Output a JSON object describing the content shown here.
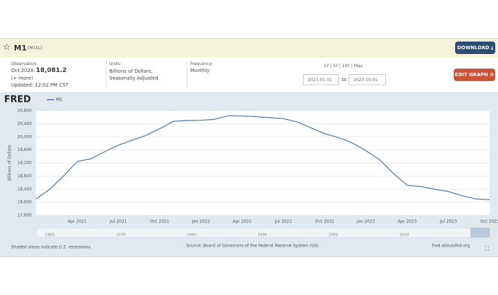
{
  "header": {
    "title": "M1",
    "code": "(M1SL)",
    "download": "DOWNLOAD"
  },
  "info": {
    "observation_label": "Observation:",
    "observation_date": "Oct 2023:",
    "observation_value": "18,081.2",
    "more": "(+ more)",
    "updated": "Updated: 12:02 PM CST",
    "units_label": "Units:",
    "units": "Billions of Dollars, Seasonally Adjusted",
    "frequency_label": "Frequency:",
    "frequency": "Monthly",
    "ranges": [
      "1Y",
      "5Y",
      "10Y",
      "Max"
    ],
    "start": "2021-01-01",
    "to": "to",
    "end": "2023-10-01",
    "edit": "EDIT GRAPH"
  },
  "logo": "FRED",
  "chart_data": {
    "type": "line",
    "y_label": "Billions of Dollars",
    "categories": [
      null,
      null,
      null,
      "Apr 2021",
      null,
      null,
      "Jul 2021",
      null,
      null,
      "Oct 2021",
      null,
      null,
      "Jan 2022",
      null,
      null,
      "Apr 2022",
      null,
      null,
      "Jul 2022",
      null,
      null,
      "Oct 2022",
      null,
      null,
      "Jan 2023",
      null,
      null,
      "Apr 2023",
      null,
      null,
      "Jul 2023",
      null,
      null,
      "Oct 2023"
    ],
    "series": [
      {
        "name": "M1",
        "color": "#4572a7",
        "values": [
          18100,
          18400,
          18800,
          19250,
          19330,
          19550,
          19750,
          19900,
          20050,
          20250,
          20480,
          20500,
          20510,
          20540,
          20650,
          20640,
          20620,
          20590,
          20560,
          20460,
          20280,
          20100,
          19980,
          19820,
          19580,
          19300,
          18880,
          18520,
          18480,
          18400,
          18330,
          18200,
          18100,
          18081.2
        ]
      }
    ],
    "ylim": [
      17600,
      20800
    ],
    "yticks": [
      {
        "value": 17600,
        "label": "17,600"
      },
      {
        "value": 18000,
        "label": "18,000"
      },
      {
        "value": 18400,
        "label": "18,400"
      },
      {
        "value": 18800,
        "label": "18,800"
      },
      {
        "value": 19200,
        "label": "19,200"
      },
      {
        "value": 19600,
        "label": "19,600"
      },
      {
        "value": 20000,
        "label": "20,000"
      },
      {
        "value": 20400,
        "label": "20,400"
      },
      {
        "value": 20800,
        "label": "20,800"
      }
    ],
    "grid": true
  },
  "navigator": {
    "labels": [
      "1960",
      "1970",
      "1980",
      "1990",
      "2000",
      "2010"
    ]
  },
  "footer": {
    "recessions": "Shaded areas indicate U.S. recessions.",
    "source": "Source: Board of Governors of the Federal Reserve System (US)",
    "site": "fred.stlouisfed.org"
  }
}
